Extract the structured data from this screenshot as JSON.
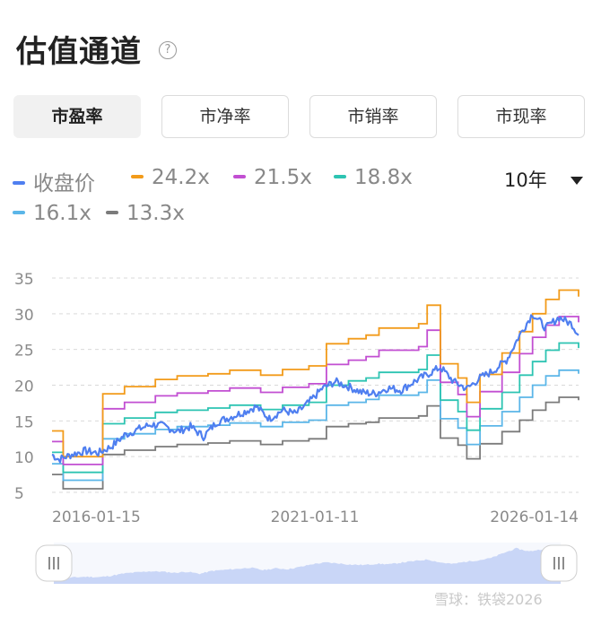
{
  "header": {
    "title": "估值通道",
    "help_icon": "question-circle-icon"
  },
  "tabs": [
    {
      "label": "市盈率",
      "active": true
    },
    {
      "label": "市净率",
      "active": false
    },
    {
      "label": "市销率",
      "active": false
    },
    {
      "label": "市现率",
      "active": false
    }
  ],
  "range_selector": {
    "value": "10年",
    "icon": "caret-down-icon"
  },
  "watermark": "雪球：铁袋2026",
  "colors": {
    "price": "#4f7ff0",
    "b1": "#f29b1a",
    "b2": "#c24fd2",
    "b3": "#2dc4b2",
    "b4": "#5bb6e8",
    "b5": "#7b7b7b",
    "navigator": "#c9d6f7"
  },
  "chart_data": {
    "type": "line",
    "x_start": "2016-01-15",
    "x_end": "2026-01-14",
    "x_ticks": [
      "2016-01-15",
      "2021-01-11",
      "2026-01-14"
    ],
    "y_ticks": [
      5,
      10,
      15,
      20,
      25,
      30,
      35
    ],
    "ylim": [
      5,
      35
    ],
    "grid": true,
    "legend_position": "top-left",
    "series": [
      {
        "name": "收盘价",
        "color": "#4f7ff0",
        "points": [
          [
            "2016-01-15",
            10.3
          ],
          [
            "2016-03-01",
            9.6
          ],
          [
            "2016-06-01",
            10.3
          ],
          [
            "2016-09-01",
            10.8
          ],
          [
            "2016-12-01",
            10.5
          ],
          [
            "2017-03-01",
            11.4
          ],
          [
            "2017-06-01",
            13.0
          ],
          [
            "2017-09-01",
            13.8
          ],
          [
            "2017-12-01",
            14.5
          ],
          [
            "2018-03-01",
            14.3
          ],
          [
            "2018-06-01",
            13.5
          ],
          [
            "2018-09-01",
            14.2
          ],
          [
            "2018-12-01",
            12.8
          ],
          [
            "2019-03-01",
            14.8
          ],
          [
            "2019-06-01",
            15.5
          ],
          [
            "2019-09-01",
            16.2
          ],
          [
            "2019-12-01",
            17.0
          ],
          [
            "2020-03-01",
            15.3
          ],
          [
            "2020-06-01",
            16.5
          ],
          [
            "2020-09-01",
            16.0
          ],
          [
            "2020-12-01",
            17.6
          ],
          [
            "2021-03-01",
            19.5
          ],
          [
            "2021-06-01",
            20.5
          ],
          [
            "2021-09-01",
            19.8
          ],
          [
            "2021-12-01",
            19.0
          ],
          [
            "2022-03-01",
            18.8
          ],
          [
            "2022-06-01",
            19.6
          ],
          [
            "2022-09-01",
            19.3
          ],
          [
            "2022-12-01",
            20.5
          ],
          [
            "2023-03-01",
            21.5
          ],
          [
            "2023-06-01",
            22.5
          ],
          [
            "2023-09-01",
            20.5
          ],
          [
            "2023-12-01",
            19.5
          ],
          [
            "2024-03-01",
            21.0
          ],
          [
            "2024-06-01",
            22.0
          ],
          [
            "2024-09-01",
            23.5
          ],
          [
            "2024-12-01",
            27.0
          ],
          [
            "2025-03-01",
            30.0
          ],
          [
            "2025-06-01",
            28.0
          ],
          [
            "2025-09-01",
            29.5
          ],
          [
            "2025-12-01",
            28.5
          ],
          [
            "2026-01-14",
            27.0
          ]
        ]
      },
      {
        "name": "24.2x",
        "color": "#f29b1a",
        "points": [
          [
            "2016-01-15",
            13.6
          ],
          [
            "2016-04-01",
            10.0
          ],
          [
            "2017-01-01",
            18.8
          ],
          [
            "2017-06-01",
            19.8
          ],
          [
            "2018-01-01",
            20.8
          ],
          [
            "2018-06-01",
            21.3
          ],
          [
            "2019-01-01",
            21.6
          ],
          [
            "2019-06-01",
            22.1
          ],
          [
            "2020-01-01",
            21.4
          ],
          [
            "2020-06-01",
            22.2
          ],
          [
            "2020-12-01",
            22.7
          ],
          [
            "2021-04-01",
            25.8
          ],
          [
            "2021-09-01",
            26.5
          ],
          [
            "2022-01-01",
            27.0
          ],
          [
            "2022-04-01",
            28.0
          ],
          [
            "2023-01-01",
            28.6
          ],
          [
            "2023-03-01",
            31.2
          ],
          [
            "2023-06-01",
            23.0
          ],
          [
            "2023-10-01",
            21.0
          ],
          [
            "2023-12-01",
            17.6
          ],
          [
            "2024-03-01",
            21.5
          ],
          [
            "2024-08-01",
            24.5
          ],
          [
            "2024-12-01",
            27.5
          ],
          [
            "2025-03-01",
            30.0
          ],
          [
            "2025-06-01",
            32.0
          ],
          [
            "2025-09-01",
            33.3
          ],
          [
            "2026-01-14",
            32.4
          ]
        ]
      },
      {
        "name": "21.5x",
        "color": "#c24fd2",
        "points": [
          [
            "2016-01-15",
            12.1
          ],
          [
            "2016-04-01",
            8.9
          ],
          [
            "2017-01-01",
            16.7
          ],
          [
            "2017-06-01",
            17.6
          ],
          [
            "2018-01-01",
            18.5
          ],
          [
            "2018-06-01",
            18.9
          ],
          [
            "2019-01-01",
            19.2
          ],
          [
            "2019-06-01",
            19.6
          ],
          [
            "2020-01-01",
            19.0
          ],
          [
            "2020-06-01",
            19.7
          ],
          [
            "2020-12-01",
            20.2
          ],
          [
            "2021-04-01",
            22.9
          ],
          [
            "2021-09-01",
            23.5
          ],
          [
            "2022-01-01",
            24.0
          ],
          [
            "2022-04-01",
            24.9
          ],
          [
            "2023-01-01",
            25.4
          ],
          [
            "2023-03-01",
            27.7
          ],
          [
            "2023-06-01",
            20.4
          ],
          [
            "2023-10-01",
            18.7
          ],
          [
            "2023-12-01",
            15.6
          ],
          [
            "2024-03-01",
            19.1
          ],
          [
            "2024-08-01",
            21.8
          ],
          [
            "2024-12-01",
            24.4
          ],
          [
            "2025-03-01",
            26.7
          ],
          [
            "2025-06-01",
            28.4
          ],
          [
            "2025-09-01",
            29.6
          ],
          [
            "2026-01-14",
            28.8
          ]
        ]
      },
      {
        "name": "18.8x",
        "color": "#2dc4b2",
        "points": [
          [
            "2016-01-15",
            10.6
          ],
          [
            "2016-04-01",
            7.8
          ],
          [
            "2017-01-01",
            14.6
          ],
          [
            "2017-06-01",
            15.4
          ],
          [
            "2018-01-01",
            16.2
          ],
          [
            "2018-06-01",
            16.5
          ],
          [
            "2019-01-01",
            16.8
          ],
          [
            "2019-06-01",
            17.2
          ],
          [
            "2020-01-01",
            16.6
          ],
          [
            "2020-06-01",
            17.2
          ],
          [
            "2020-12-01",
            17.6
          ],
          [
            "2021-04-01",
            20.0
          ],
          [
            "2021-09-01",
            20.6
          ],
          [
            "2022-01-01",
            21.0
          ],
          [
            "2022-04-01",
            21.8
          ],
          [
            "2023-01-01",
            22.2
          ],
          [
            "2023-03-01",
            24.2
          ],
          [
            "2023-06-01",
            17.9
          ],
          [
            "2023-10-01",
            16.3
          ],
          [
            "2023-12-01",
            13.7
          ],
          [
            "2024-03-01",
            16.7
          ],
          [
            "2024-08-01",
            19.0
          ],
          [
            "2024-12-01",
            21.4
          ],
          [
            "2025-03-01",
            23.3
          ],
          [
            "2025-06-01",
            24.9
          ],
          [
            "2025-09-01",
            25.9
          ],
          [
            "2026-01-14",
            25.2
          ]
        ]
      },
      {
        "name": "16.1x",
        "color": "#5bb6e8",
        "points": [
          [
            "2016-01-15",
            9.0
          ],
          [
            "2016-04-01",
            6.7
          ],
          [
            "2017-01-01",
            12.5
          ],
          [
            "2017-06-01",
            13.2
          ],
          [
            "2018-01-01",
            13.8
          ],
          [
            "2018-06-01",
            14.2
          ],
          [
            "2019-01-01",
            14.4
          ],
          [
            "2019-06-01",
            14.7
          ],
          [
            "2020-01-01",
            14.2
          ],
          [
            "2020-06-01",
            14.8
          ],
          [
            "2020-12-01",
            15.1
          ],
          [
            "2021-04-01",
            17.2
          ],
          [
            "2021-09-01",
            17.6
          ],
          [
            "2022-01-01",
            18.0
          ],
          [
            "2022-04-01",
            18.6
          ],
          [
            "2023-01-01",
            19.0
          ],
          [
            "2023-03-01",
            20.7
          ],
          [
            "2023-06-01",
            15.3
          ],
          [
            "2023-10-01",
            14.0
          ],
          [
            "2023-12-01",
            11.7
          ],
          [
            "2024-03-01",
            14.3
          ],
          [
            "2024-08-01",
            16.3
          ],
          [
            "2024-12-01",
            18.3
          ],
          [
            "2025-03-01",
            20.0
          ],
          [
            "2025-06-01",
            21.3
          ],
          [
            "2025-09-01",
            22.1
          ],
          [
            "2026-01-14",
            21.6
          ]
        ]
      },
      {
        "name": "13.3x",
        "color": "#7b7b7b",
        "points": [
          [
            "2016-01-15",
            7.5
          ],
          [
            "2016-04-01",
            5.5
          ],
          [
            "2017-01-01",
            10.3
          ],
          [
            "2017-06-01",
            10.9
          ],
          [
            "2018-01-01",
            11.4
          ],
          [
            "2018-06-01",
            11.7
          ],
          [
            "2019-01-01",
            11.9
          ],
          [
            "2019-06-01",
            12.2
          ],
          [
            "2020-01-01",
            11.7
          ],
          [
            "2020-06-01",
            12.2
          ],
          [
            "2020-12-01",
            12.5
          ],
          [
            "2021-04-01",
            14.2
          ],
          [
            "2021-09-01",
            14.6
          ],
          [
            "2022-01-01",
            14.8
          ],
          [
            "2022-04-01",
            15.4
          ],
          [
            "2023-01-01",
            15.7
          ],
          [
            "2023-03-01",
            17.1
          ],
          [
            "2023-06-01",
            12.6
          ],
          [
            "2023-10-01",
            11.6
          ],
          [
            "2023-12-01",
            9.7
          ],
          [
            "2024-03-01",
            11.8
          ],
          [
            "2024-08-01",
            13.5
          ],
          [
            "2024-12-01",
            15.1
          ],
          [
            "2025-03-01",
            16.5
          ],
          [
            "2025-06-01",
            17.6
          ],
          [
            "2025-09-01",
            18.3
          ],
          [
            "2026-01-14",
            17.9
          ]
        ]
      }
    ]
  }
}
